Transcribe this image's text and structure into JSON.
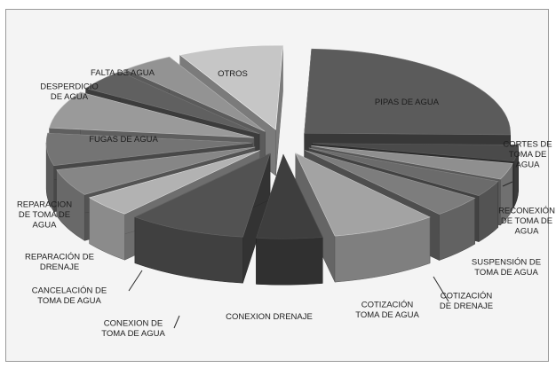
{
  "chart_data": {
    "type": "pie",
    "style": "3d-exploded",
    "title": "",
    "categories": [
      "PIPAS DE AGUA",
      "CORTES DE TOMA DE AGUA",
      "RECONEXIÓN DE TOMA DE AGUA",
      "SUSPENSIÓN DE TOMA DE AGUA",
      "COTIZACIÓN DE DRENAJE",
      "COTIZACIÓN TOMA DE AGUA",
      "CONEXION DRENAJE",
      "CONEXION DE TOMA DE AGUA",
      "CANCELACIÓN DE TOMA DE AGUA",
      "REPARACIÓN DE DRENAJE",
      "REPARACION DE TOMA DE AGUA",
      "FUGAS DE AGUA",
      "DESPERDICIO DE AGUA",
      "FALTA DE AGUA",
      "OTROS"
    ],
    "values": [
      24,
      3,
      3,
      3,
      4,
      8,
      5,
      9,
      4,
      5,
      6,
      7,
      4,
      4,
      8
    ],
    "colors": [
      "#5b5b5b",
      "#4a4a4a",
      "#8f8f8f",
      "#6b6b6b",
      "#7d7d7d",
      "#a3a3a3",
      "#3e3e3e",
      "#525252",
      "#b2b2b2",
      "#868686",
      "#747474",
      "#9a9a9a",
      "#606060",
      "#939393",
      "#c6c6c6"
    ],
    "legend": "none",
    "data_labels": "category-name"
  }
}
